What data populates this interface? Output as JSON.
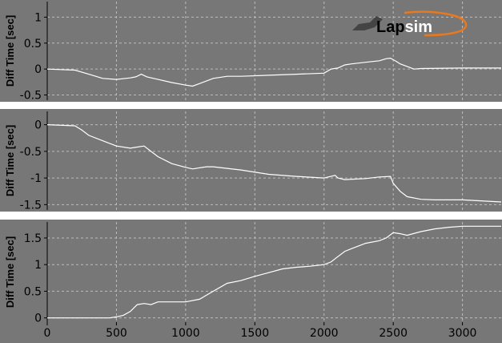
{
  "logo": {
    "text_main": "Lap",
    "text_sub": "sim"
  },
  "chart_data": {
    "type": "line",
    "xlim": [
      0,
      3280
    ],
    "x_ticks": [
      0,
      500,
      1000,
      1500,
      2000,
      2500,
      3000
    ],
    "grid": true,
    "line_color": "#ffffff",
    "panels": [
      {
        "ylabel": "Diff Time [sec]",
        "ylim": [
          -0.6,
          1.3
        ],
        "y_ticks": [
          -0.5,
          0,
          0.5,
          1
        ],
        "y_tick_labels": [
          "-0.5",
          "0",
          "0.5",
          "1"
        ],
        "x": [
          0,
          200,
          300,
          400,
          500,
          600,
          640,
          680,
          720,
          800,
          900,
          1000,
          1050,
          1100,
          1200,
          1300,
          1400,
          1600,
          1800,
          2000,
          2050,
          2100,
          2150,
          2200,
          2300,
          2400,
          2450,
          2480,
          2520,
          2550,
          2600,
          2650,
          2700,
          3000,
          3280
        ],
        "y": [
          0.0,
          -0.02,
          -0.1,
          -0.18,
          -0.2,
          -0.17,
          -0.15,
          -0.1,
          -0.15,
          -0.2,
          -0.26,
          -0.31,
          -0.33,
          -0.28,
          -0.18,
          -0.14,
          -0.14,
          -0.12,
          -0.1,
          -0.08,
          0.0,
          0.02,
          0.08,
          0.1,
          0.13,
          0.16,
          0.2,
          0.21,
          0.15,
          0.1,
          0.05,
          0.0,
          0.01,
          0.02,
          0.02
        ]
      },
      {
        "ylabel": "Diff Time [sec]",
        "ylim": [
          -1.6,
          0.25
        ],
        "y_ticks": [
          -1.5,
          -1,
          -0.5,
          0
        ],
        "y_tick_labels": [
          "-1.5",
          "-1",
          "-0.5",
          "0"
        ],
        "x": [
          0,
          200,
          250,
          300,
          400,
          500,
          600,
          650,
          700,
          750,
          800,
          900,
          1000,
          1050,
          1150,
          1200,
          1400,
          1600,
          1800,
          2000,
          2050,
          2080,
          2100,
          2150,
          2300,
          2400,
          2480,
          2500,
          2550,
          2600,
          2700,
          2800,
          3000,
          3280
        ],
        "y": [
          0.0,
          -0.02,
          -0.1,
          -0.2,
          -0.3,
          -0.4,
          -0.44,
          -0.42,
          -0.4,
          -0.5,
          -0.6,
          -0.73,
          -0.8,
          -0.83,
          -0.79,
          -0.79,
          -0.85,
          -0.93,
          -0.97,
          -1.0,
          -0.97,
          -0.95,
          -1.0,
          -1.03,
          -1.01,
          -0.98,
          -0.97,
          -1.1,
          -1.25,
          -1.35,
          -1.4,
          -1.41,
          -1.41,
          -1.45
        ]
      },
      {
        "ylabel": "Diff Time [sec]",
        "ylim": [
          -0.08,
          1.8
        ],
        "y_ticks": [
          0,
          0.5,
          1,
          1.5
        ],
        "y_tick_labels": [
          "0",
          "0.5",
          "1",
          "1.5"
        ],
        "x": [
          0,
          200,
          400,
          450,
          500,
          550,
          600,
          650,
          700,
          750,
          800,
          1000,
          1100,
          1200,
          1300,
          1400,
          1500,
          1600,
          1700,
          1800,
          1900,
          2000,
          2050,
          2100,
          2150,
          2200,
          2300,
          2400,
          2450,
          2500,
          2550,
          2600,
          2700,
          2800,
          2900,
          3000,
          3280
        ],
        "y": [
          0.0,
          0.0,
          0.0,
          0.0,
          0.02,
          0.05,
          0.12,
          0.25,
          0.27,
          0.25,
          0.3,
          0.3,
          0.35,
          0.5,
          0.65,
          0.7,
          0.78,
          0.85,
          0.92,
          0.95,
          0.97,
          1.0,
          1.05,
          1.15,
          1.25,
          1.3,
          1.4,
          1.45,
          1.5,
          1.6,
          1.58,
          1.55,
          1.62,
          1.67,
          1.7,
          1.72,
          1.72
        ]
      }
    ]
  }
}
